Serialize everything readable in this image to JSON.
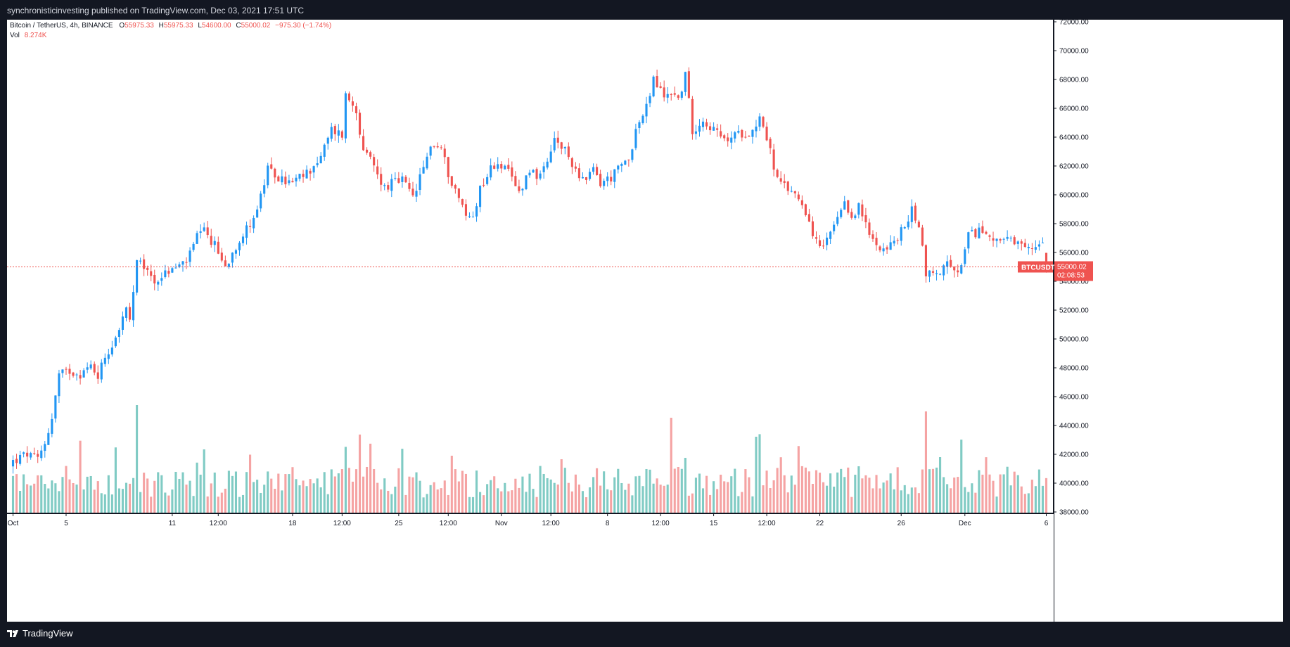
{
  "header": {
    "published_text": "synchronisticinvesting published on TradingView.com, Dec 03, 2021 17:51 UTC"
  },
  "legend": {
    "symbol": "Bitcoin / TetherUS, 4h, BINANCE",
    "open_label": "O",
    "open": "55975.33",
    "high_label": "H",
    "high": "55975.33",
    "low_label": "L",
    "low": "54600.00",
    "close_label": "C",
    "close": "55000.02",
    "change": "−975.30 (−1.74%)",
    "vol_label": "Vol",
    "vol_value": "8.274K"
  },
  "price_badge": {
    "symbol": "BTCUSDT",
    "price": "55000.02",
    "countdown": "02:08:53"
  },
  "footer": {
    "brand": "TradingView"
  },
  "colors": {
    "up": "#2196f3",
    "down": "#ef5350",
    "vol_up": "#80cbc4",
    "vol_down": "#f5a3a3",
    "last_price_line": "#ef5350",
    "background": "#ffffff",
    "frame": "#131722"
  },
  "chart_data": {
    "type": "candlestick",
    "symbol": "BTCUSDT",
    "interval": "4h",
    "y_axis": {
      "min": 38000,
      "max": 72000,
      "ticks": [
        "72000.00",
        "70000.00",
        "68000.00",
        "66000.00",
        "64000.00",
        "62000.00",
        "60000.00",
        "58000.00",
        "56000.00",
        "54000.00",
        "52000.00",
        "50000.00",
        "48000.00",
        "46000.00",
        "44000.00",
        "42000.00",
        "40000.00",
        "38000.00"
      ]
    },
    "x_axis": {
      "tick_labels": [
        "Oct",
        "5",
        "11",
        "12:00",
        "18",
        "12:00",
        "25",
        "12:00",
        "Nov",
        "12:00",
        "8",
        "12:00",
        "15",
        "12:00",
        "22",
        "26",
        "Dec",
        "6"
      ],
      "tick_index": [
        0,
        15,
        45,
        58,
        79,
        93,
        109,
        123,
        138,
        152,
        168,
        183,
        198,
        213,
        228,
        251,
        269,
        292
      ]
    },
    "candle_count": 281,
    "price_path": [
      [
        0,
        41500
      ],
      [
        4,
        42000
      ],
      [
        7,
        41600
      ],
      [
        9,
        42800
      ],
      [
        11,
        44500
      ],
      [
        13,
        47500
      ],
      [
        16,
        47800
      ],
      [
        19,
        47600
      ],
      [
        22,
        48100
      ],
      [
        24,
        47500
      ],
      [
        26,
        48800
      ],
      [
        28,
        49600
      ],
      [
        30,
        50800
      ],
      [
        32,
        52000
      ],
      [
        33,
        51200
      ],
      [
        35,
        55200
      ],
      [
        37,
        55000
      ],
      [
        40,
        54000
      ],
      [
        44,
        54700
      ],
      [
        48,
        55200
      ],
      [
        50,
        55800
      ],
      [
        52,
        57100
      ],
      [
        54,
        57400
      ],
      [
        57,
        56500
      ],
      [
        60,
        55000
      ],
      [
        63,
        56500
      ],
      [
        66,
        57600
      ],
      [
        69,
        59000
      ],
      [
        72,
        61700
      ],
      [
        76,
        61000
      ],
      [
        79,
        60800
      ],
      [
        83,
        61500
      ],
      [
        87,
        62600
      ],
      [
        90,
        64500
      ],
      [
        93,
        64200
      ],
      [
        94,
        66900
      ],
      [
        97,
        66000
      ],
      [
        99,
        62800
      ],
      [
        101,
        62500
      ],
      [
        103,
        61400
      ],
      [
        105,
        60500
      ],
      [
        107,
        60800
      ],
      [
        110,
        61000
      ],
      [
        113,
        59800
      ],
      [
        116,
        61800
      ],
      [
        118,
        63500
      ],
      [
        121,
        63200
      ],
      [
        123,
        61500
      ],
      [
        126,
        59800
      ],
      [
        128,
        58500
      ],
      [
        130,
        58500
      ],
      [
        132,
        60500
      ],
      [
        135,
        61800
      ],
      [
        137,
        62300
      ],
      [
        140,
        61500
      ],
      [
        143,
        60200
      ],
      [
        146,
        61800
      ],
      [
        149,
        61200
      ],
      [
        151,
        62100
      ],
      [
        153,
        63800
      ],
      [
        156,
        63000
      ],
      [
        159,
        61800
      ],
      [
        162,
        60800
      ],
      [
        164,
        61800
      ],
      [
        166,
        60800
      ],
      [
        169,
        61200
      ],
      [
        172,
        62000
      ],
      [
        174,
        62500
      ],
      [
        176,
        64500
      ],
      [
        179,
        66000
      ],
      [
        181,
        68000
      ],
      [
        184,
        66800
      ],
      [
        186,
        67200
      ],
      [
        188,
        66600
      ],
      [
        190,
        68300
      ],
      [
        192,
        64500
      ],
      [
        195,
        65200
      ],
      [
        198,
        64500
      ],
      [
        201,
        63700
      ],
      [
        203,
        64000
      ],
      [
        206,
        64300
      ],
      [
        209,
        64400
      ],
      [
        211,
        65500
      ],
      [
        213,
        64000
      ],
      [
        216,
        61000
      ],
      [
        218,
        60500
      ],
      [
        220,
        60300
      ],
      [
        223,
        59500
      ],
      [
        225,
        58200
      ],
      [
        227,
        56600
      ],
      [
        229,
        56300
      ],
      [
        232,
        57800
      ],
      [
        235,
        59200
      ],
      [
        237,
        58500
      ],
      [
        239,
        59200
      ],
      [
        242,
        57200
      ],
      [
        244,
        56600
      ],
      [
        247,
        56300
      ],
      [
        249,
        56700
      ],
      [
        252,
        57800
      ],
      [
        254,
        58900
      ],
      [
        256,
        58000
      ],
      [
        258,
        54600
      ],
      [
        261,
        54500
      ],
      [
        264,
        55200
      ],
      [
        266,
        54500
      ],
      [
        268,
        55000
      ],
      [
        270,
        57100
      ],
      [
        273,
        57500
      ],
      [
        276,
        57200
      ],
      [
        279,
        56900
      ],
      [
        282,
        56700
      ],
      [
        285,
        56300
      ],
      [
        288,
        56200
      ],
      [
        291,
        57000
      ],
      [
        292,
        55000
      ]
    ],
    "last_candle": {
      "open": 55975.33,
      "high": 55975.33,
      "low": 54600.0,
      "close": 55000.02
    },
    "last_price": 55000.02,
    "volume_scale": {
      "last": 8.274,
      "unit": "K"
    },
    "notes": "OHLC per candle approximated from the visible price path; volume bars shown at bottom"
  }
}
